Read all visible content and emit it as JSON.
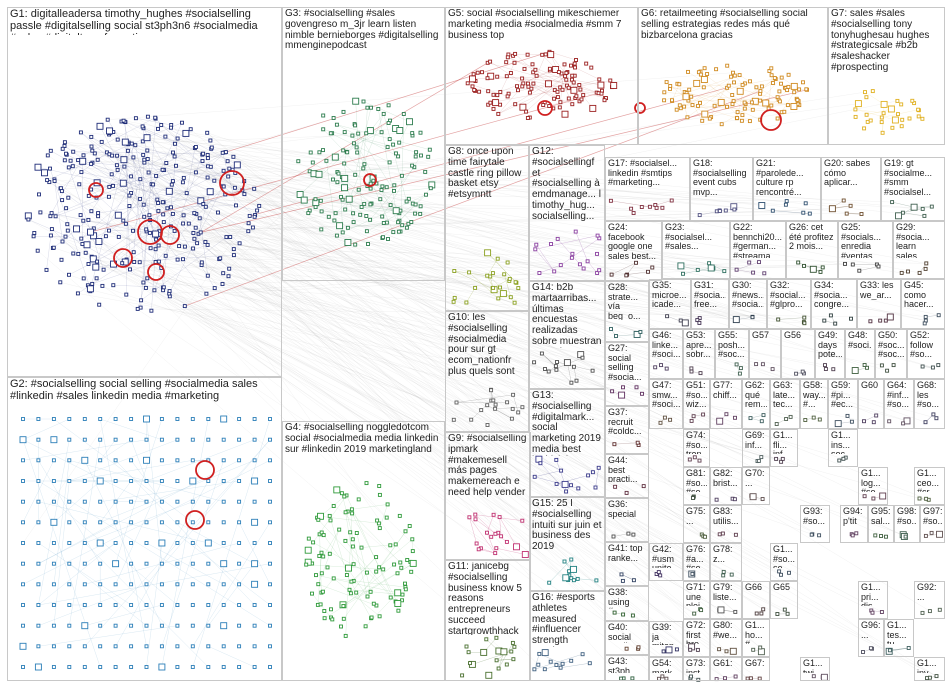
{
  "groups": [
    {
      "id": "g1",
      "label": "G1: digitalleadersa timothy_hughes #socialselling passle #digitalselling social st3ph3n6 #socialmedia #sales #digitaltransformation",
      "color": "#1f2d78"
    },
    {
      "id": "g2",
      "label": "G2: #socialselling social selling #socialmedia sales #linkedin #sales linkedin media #marketing",
      "color": "#2c7fb8"
    },
    {
      "id": "g3",
      "label": "G3: #socialselling #sales govengreso m_3jr learn listen nimble bernieborges #digitalselling mmenginepodcast",
      "color": "#2e7d4f"
    },
    {
      "id": "g4",
      "label": "G4: #socialselling noggledotcom social #socialmedia media linkedin sur #linkedin 2019 marketingland",
      "color": "#2f9a3a"
    },
    {
      "id": "g5",
      "label": "G5: social #socialselling mikeschiemer marketing media #socialmedia #smm 7 business top",
      "color": "#9b2020"
    },
    {
      "id": "g6",
      "label": "G6: retailmeeting #socialselling social selling estrategias redes más qué bizbarcelona gracias",
      "color": "#d08a20"
    },
    {
      "id": "g7",
      "label": "G7: sales #sales #socialselling tony tonyhughesau hughes #strategicsale #b2b #saleshacker #prospecting",
      "color": "#e0b020"
    },
    {
      "id": "g8",
      "label": "G8: once upon time fairytale castle ring pillow basket etsy #etsymntt",
      "color": "#8aa020"
    },
    {
      "id": "g9",
      "label": "G9: #socialselling ipmark #makemesell más pages makemereach e need help vender",
      "color": "#c03070"
    },
    {
      "id": "g10",
      "label": "G10: les #socialselling #socialmedia pour sur gt ecom_nationfr plus quels sont",
      "color": "#606060"
    },
    {
      "id": "g11",
      "label": "G11: janicebg #socialselling business know 5 reasons entrepreneurs succeed startgrowthhack #purpose",
      "color": "#4a7030"
    },
    {
      "id": "g12",
      "label": "G12: #socialsellingf et #socialselling à emdmanage... l timothy_hug... socialselling...",
      "color": "#8a40a0"
    },
    {
      "id": "g13",
      "label": "G13: #socialselling #digitalmark... social marketing 2019 media best jonbizi tips examples",
      "color": "#3a3a8a"
    },
    {
      "id": "g14",
      "label": "G14: b2b martaarribas... últimas encuestas realizadas sobre muestran mayoria...",
      "color": "#505050"
    },
    {
      "id": "g15",
      "label": "G15: 25 l #socialselling intuiti sur juin et business des 2019",
      "color": "#208080"
    },
    {
      "id": "g16",
      "label": "G16: #esports athletes measured #influencer strength watch...",
      "color": "#406080"
    },
    {
      "id": "g17",
      "label": "G17: #socialsel... linkedin #smtips #marketing...",
      "color": "#803040"
    },
    {
      "id": "g18",
      "label": "G18: #socialselling event cubs mvp...",
      "color": "#505080"
    },
    {
      "id": "g19",
      "label": "G19: gt #socialme... #smm #socialsel...",
      "color": "#406050"
    },
    {
      "id": "g20",
      "label": "G20: sabes cómo aplicar...",
      "color": "#705030"
    },
    {
      "id": "g21",
      "label": "G21: #parolede... culture rp rencontré...",
      "color": "#305070"
    },
    {
      "id": "g22",
      "label": "G22: bennchi20... #german... #streama...",
      "color": "#604070"
    },
    {
      "id": "g23",
      "label": "G23: #socialsel... #sales...",
      "color": "#307060"
    },
    {
      "id": "g24",
      "label": "G24: facebook google one sales best...",
      "color": "#503030"
    },
    {
      "id": "g25",
      "label": "G25: #socials... enredia #ventas...",
      "color": "#404040"
    },
    {
      "id": "g26",
      "label": "G26: cet été profitez 2 mois...",
      "color": "#305030"
    },
    {
      "id": "g27",
      "label": "G27: social selling #socia...",
      "color": "#603060"
    },
    {
      "id": "g28",
      "label": "G28: strate... vía beg_o...",
      "color": "#306060"
    },
    {
      "id": "g29",
      "label": "G29: #socia... learn sales...",
      "color": "#504030"
    },
    {
      "id": "g30",
      "label": "G30: #news... #socia...",
      "color": "#304050"
    },
    {
      "id": "g31",
      "label": "G31: #socia... free...",
      "color": "#403050"
    },
    {
      "id": "g32",
      "label": "G32: #social... #glpro...",
      "color": "#405030"
    },
    {
      "id": "g33",
      "label": "G33: les we_ar...",
      "color": "#503040"
    },
    {
      "id": "g34",
      "label": "G34: #socia... congre...",
      "color": "#304040"
    },
    {
      "id": "g35",
      "label": "G35: microe... icade...",
      "color": "#404050"
    },
    {
      "id": "g36",
      "label": "G36: special",
      "color": "#505050"
    },
    {
      "id": "g37",
      "label": "G37: recruit #coldc... tried...",
      "color": "#603030"
    },
    {
      "id": "g38",
      "label": "G38: using #worc... still...",
      "color": "#306030"
    },
    {
      "id": "g39",
      "label": "G39: ja miten asiant... saada...",
      "color": "#303060"
    },
    {
      "id": "g40",
      "label": "G40: social media mega...",
      "color": "#604030"
    },
    {
      "id": "g41",
      "label": "G41: top ranke...",
      "color": "#304060"
    },
    {
      "id": "g42",
      "label": "G42: #usm unite...",
      "color": "#403060"
    },
    {
      "id": "g43",
      "label": "G43: st3ph... timot...",
      "color": "#306040"
    },
    {
      "id": "g44",
      "label": "G44: best practi...",
      "color": "#603040"
    },
    {
      "id": "g45",
      "label": "G45: como hacer...",
      "color": "#405060"
    },
    {
      "id": "g46",
      "label": "G46: linke... #soci...",
      "color": "#504060"
    },
    {
      "id": "g47",
      "label": "G47: smw... #soci...",
      "color": "#605040"
    },
    {
      "id": "g48",
      "label": "G48: #soci...",
      "color": "#406040"
    },
    {
      "id": "g49",
      "label": "G49: days pote...",
      "color": "#504050"
    },
    {
      "id": "g50",
      "label": "G50: #soc... #soc...",
      "color": "#405040"
    },
    {
      "id": "g51",
      "label": "G51: #so... wiz...",
      "color": "#604050"
    },
    {
      "id": "g52",
      "label": "G52: follow #so...",
      "color": "#405050"
    },
    {
      "id": "g53",
      "label": "G53: apre... sobr...",
      "color": "#504050"
    },
    {
      "id": "g54",
      "label": "G54: mark... inst...",
      "color": "#605050"
    },
    {
      "id": "g55",
      "label": "G55: posh... #soc...",
      "color": "#406050"
    },
    {
      "id": "g56",
      "label": "G56",
      "color": "#505060"
    },
    {
      "id": "g57",
      "label": "G57",
      "color": "#605060"
    },
    {
      "id": "g58",
      "label": "G58: way... #...",
      "color": "#506040"
    },
    {
      "id": "g59",
      "label": "G59: #pi... #ec...",
      "color": "#405060"
    },
    {
      "id": "g60",
      "label": "G60",
      "color": "#504060"
    },
    {
      "id": "g61",
      "label": "G61: ...",
      "color": "#604060"
    },
    {
      "id": "g62",
      "label": "G62: qué rem...",
      "color": "#406060"
    },
    {
      "id": "g63",
      "label": "G63: late... tec...",
      "color": "#506050"
    },
    {
      "id": "g64",
      "label": "G64: #inf... #so...",
      "color": "#605060"
    },
    {
      "id": "g65",
      "label": "G65",
      "color": "#405040"
    },
    {
      "id": "g66",
      "label": "G66",
      "color": "#504040"
    },
    {
      "id": "g67",
      "label": "G67: ...",
      "color": "#604040"
    },
    {
      "id": "g68",
      "label": "G68: les #so...",
      "color": "#404060"
    },
    {
      "id": "g69",
      "label": "G69: inf...",
      "color": "#506060"
    },
    {
      "id": "g70",
      "label": "G70: ...",
      "color": "#605050"
    },
    {
      "id": "g71",
      "label": "G71: une plei...",
      "color": "#406040"
    },
    {
      "id": "g72",
      "label": "G72: first bre...",
      "color": "#504050"
    },
    {
      "id": "g73",
      "label": "G73: inst... sta...",
      "color": "#405050"
    },
    {
      "id": "g74",
      "label": "G74: #so... tren...",
      "color": "#604050"
    },
    {
      "id": "g75",
      "label": "G75: ...",
      "color": "#506040"
    },
    {
      "id": "g76",
      "label": "G76: #a... #so...",
      "color": "#405060"
    },
    {
      "id": "g77",
      "label": "G77: chiff...",
      "color": "#604060"
    },
    {
      "id": "g78",
      "label": "G78: z...",
      "color": "#406050"
    },
    {
      "id": "g79",
      "label": "G79: liste...",
      "color": "#505050"
    },
    {
      "id": "g80",
      "label": "G80: #we...",
      "color": "#605040"
    },
    {
      "id": "g81",
      "label": "G81: #so... #so...",
      "color": "#405040"
    },
    {
      "id": "g82",
      "label": "G82: brist...",
      "color": "#504060"
    },
    {
      "id": "g83",
      "label": "G83: utilis...",
      "color": "#604050"
    },
    {
      "id": "g92",
      "label": "G92: ...",
      "color": "#506050"
    },
    {
      "id": "g93",
      "label": "G93: #so...",
      "color": "#405060"
    },
    {
      "id": "g94",
      "label": "G94: p'tit",
      "color": "#604060"
    },
    {
      "id": "g95",
      "label": "G95: sal...",
      "color": "#406040"
    },
    {
      "id": "g96",
      "label": "G96: ...",
      "color": "#505060"
    },
    {
      "id": "g97",
      "label": "G97: #so...",
      "color": "#605050"
    },
    {
      "id": "g98",
      "label": "G98: #so...",
      "color": "#406050"
    },
    {
      "id": "g1x",
      "label": "G1... fli... inf...",
      "color": "#504050"
    },
    {
      "id": "g1y",
      "label": "G1... ins... soc...",
      "color": "#405050"
    },
    {
      "id": "g1z",
      "label": "G1... log... #so...",
      "color": "#604050"
    },
    {
      "id": "g1a",
      "label": "G1... ceo... #cr...",
      "color": "#506040"
    },
    {
      "id": "g1b",
      "label": "G1... #so... so...",
      "color": "#405060"
    },
    {
      "id": "g1c",
      "label": "G1... pri... dis...",
      "color": "#604060"
    },
    {
      "id": "g1d",
      "label": "G1... tes... tu...",
      "color": "#406060"
    },
    {
      "id": "g1e",
      "label": "G1... ho... #...",
      "color": "#506050"
    },
    {
      "id": "g1f",
      "label": "G1... twi... #m...",
      "color": "#605060"
    },
    {
      "id": "g1g",
      "label": "G1... inv...",
      "color": "#405040"
    }
  ]
}
